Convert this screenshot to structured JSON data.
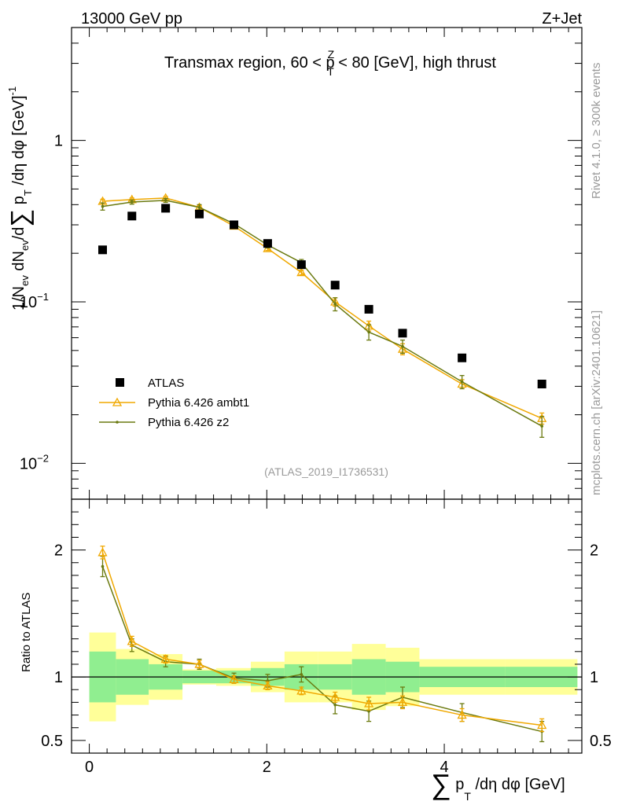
{
  "header": {
    "energy_label": "13000 GeV pp",
    "process_label": "Z+Jet",
    "side_rivet": "Rivet 4.1.0, ≥ 300k events",
    "side_mcplots": "mcplots.cern.ch [arXiv:2401.10621]",
    "watermark": "(ATLAS_2019_I1736531)"
  },
  "colors": {
    "data": "#000000",
    "ambt1": "#f0a800",
    "z2": "#6b7a10",
    "band_inner": "#90ee90",
    "band_outer": "#ffff99"
  },
  "chart_data": [
    {
      "type": "scatter",
      "id": "main",
      "title": "Transmax region, 60 < p_T^Z < 80 [GeV], high thrust",
      "title_parts": {
        "pre": "Transmax region, 60 < p",
        "sup": "Z",
        "sub": "T",
        "post": " < 80 [GeV], high thrust"
      },
      "ylabel": "1/N_ev dN_ev/d∑ p_T /dη dφ [GeV]^-1",
      "ylabel_parts": {
        "a": "1/N",
        "a_sub": "ev",
        "b": " dN",
        "b_sub": "ev",
        "c": "/d",
        "sigma": "∑",
        "d": " p",
        "d_sub": "T",
        "e": " /dη dφ  [GeV]",
        "e_sup": "-1"
      },
      "yscale": "log",
      "ylim": [
        0.006,
        5
      ],
      "xlim": [
        -0.2,
        5.55
      ],
      "yticks": [
        {
          "value": 1,
          "label": "1",
          "sup": ""
        },
        {
          "value": 0.1,
          "label": "10",
          "sup": "−1"
        },
        {
          "value": 0.01,
          "label": "10",
          "sup": "−2"
        }
      ],
      "legend": {
        "position": "lower-left",
        "entries": [
          {
            "name": "ATLAS",
            "series": "data"
          },
          {
            "name": "Pythia 6.426 ambt1",
            "series": "ambt1"
          },
          {
            "name": "Pythia 6.426 z2",
            "series": "z2"
          }
        ]
      },
      "series": [
        {
          "name": "ATLAS",
          "key": "data",
          "marker": "square",
          "x": [
            0.15,
            0.48,
            0.86,
            1.24,
            1.63,
            2.01,
            2.39,
            2.77,
            3.15,
            3.53,
            4.2,
            5.1
          ],
          "values": [
            0.21,
            0.34,
            0.38,
            0.35,
            0.3,
            0.23,
            0.17,
            0.127,
            0.09,
            0.064,
            0.045,
            0.031
          ]
        },
        {
          "name": "Pythia 6.426 ambt1",
          "key": "ambt1",
          "marker": "triangle",
          "x": [
            0.15,
            0.48,
            0.86,
            1.24,
            1.63,
            2.01,
            2.39,
            2.77,
            3.15,
            3.53,
            4.2,
            5.1
          ],
          "values": [
            0.42,
            0.43,
            0.44,
            0.385,
            0.295,
            0.214,
            0.152,
            0.1,
            0.071,
            0.051,
            0.031,
            0.019
          ],
          "errors": [
            0.012,
            0.01,
            0.01,
            0.01,
            0.008,
            0.006,
            0.005,
            0.006,
            0.005,
            0.004,
            0.002,
            0.0015
          ]
        },
        {
          "name": "Pythia 6.426 z2",
          "key": "z2",
          "marker": "dot",
          "x": [
            0.15,
            0.48,
            0.86,
            1.24,
            1.63,
            2.01,
            2.39,
            2.77,
            3.15,
            3.53,
            4.2,
            5.1
          ],
          "values": [
            0.39,
            0.415,
            0.425,
            0.385,
            0.305,
            0.225,
            0.175,
            0.097,
            0.065,
            0.053,
            0.032,
            0.017
          ],
          "errors": [
            0.02,
            0.012,
            0.012,
            0.015,
            0.01,
            0.009,
            0.008,
            0.009,
            0.007,
            0.005,
            0.003,
            0.0025
          ]
        }
      ]
    },
    {
      "type": "line",
      "id": "ratio",
      "ylabel": "Ratio to ATLAS",
      "xlabel": "∑ p_T /dη dφ [GeV]",
      "xlabel_parts": {
        "sigma": "∑",
        "a": " p",
        "a_sub": "T",
        "b": " /dη dφ [GeV]"
      },
      "xlim": [
        -0.2,
        5.55
      ],
      "ylim": [
        0.4,
        2.4
      ],
      "xticks": [
        0,
        2,
        4
      ],
      "yticks": [
        0.5,
        1,
        2
      ],
      "bins": [
        0,
        0.3,
        0.67,
        1.05,
        1.43,
        1.82,
        2.2,
        2.58,
        2.96,
        3.34,
        3.72,
        4.69,
        5.5
      ],
      "band_inner": [
        0.2,
        0.14,
        0.1,
        0.05,
        0.05,
        0.07,
        0.1,
        0.1,
        0.14,
        0.12,
        0.08,
        0.08
      ],
      "band_outer": [
        0.35,
        0.22,
        0.18,
        0.06,
        0.07,
        0.12,
        0.2,
        0.2,
        0.26,
        0.23,
        0.14,
        0.14
      ],
      "series": [
        {
          "name": "Pythia 6.426 ambt1",
          "key": "ambt1",
          "x": [
            0.15,
            0.48,
            0.86,
            1.24,
            1.63,
            2.01,
            2.39,
            2.77,
            3.15,
            3.53,
            4.2,
            5.1
          ],
          "values": [
            1.98,
            1.28,
            1.14,
            1.1,
            0.98,
            0.93,
            0.89,
            0.84,
            0.79,
            0.8,
            0.7,
            0.62
          ],
          "errors": [
            0.05,
            0.04,
            0.03,
            0.03,
            0.03,
            0.03,
            0.03,
            0.04,
            0.05,
            0.05,
            0.05,
            0.05
          ]
        },
        {
          "name": "Pythia 6.426 z2",
          "key": "z2",
          "x": [
            0.15,
            0.48,
            0.86,
            1.24,
            1.63,
            2.01,
            2.39,
            2.77,
            3.15,
            3.53,
            4.2,
            5.1
          ],
          "values": [
            1.87,
            1.25,
            1.12,
            1.1,
            0.99,
            0.97,
            1.02,
            0.78,
            0.73,
            0.84,
            0.72,
            0.57
          ],
          "errors": [
            0.08,
            0.05,
            0.04,
            0.04,
            0.04,
            0.05,
            0.06,
            0.07,
            0.08,
            0.08,
            0.07,
            0.08
          ]
        }
      ]
    }
  ]
}
